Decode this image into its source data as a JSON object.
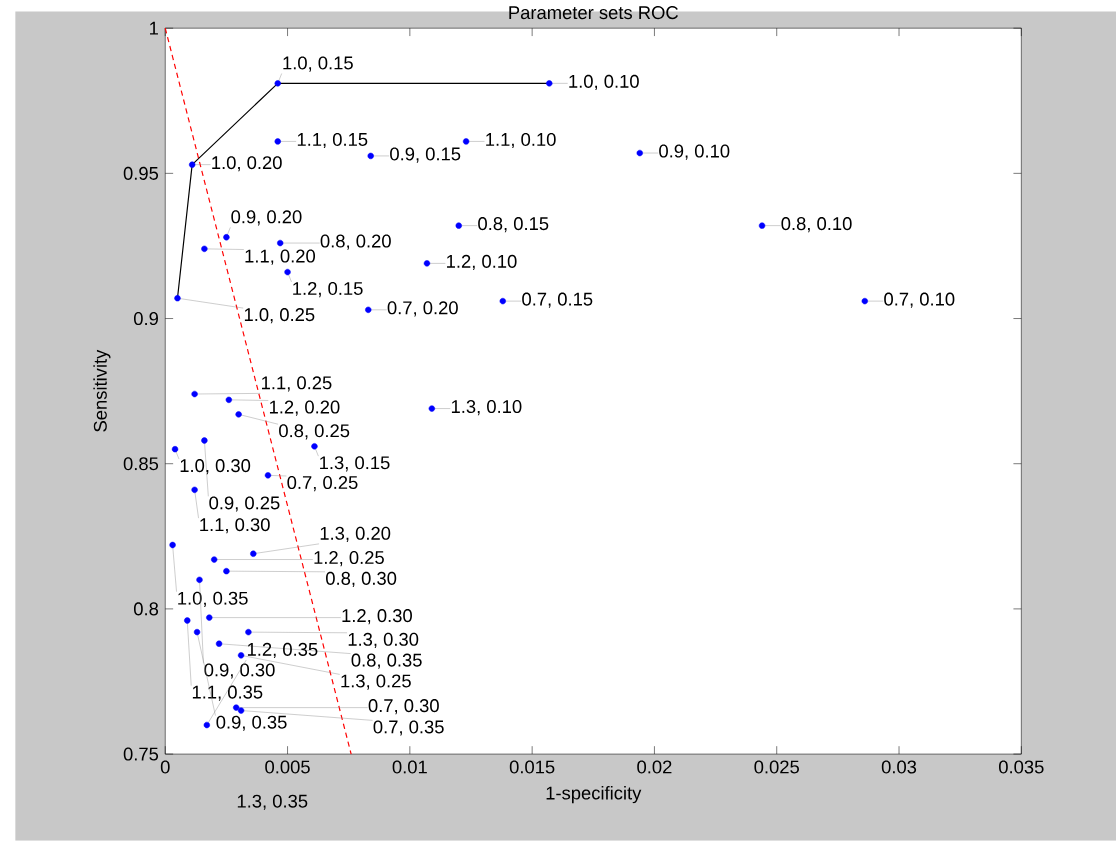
{
  "chart_data": {
    "type": "scatter",
    "title": "Parameter sets ROC",
    "xlabel": "1-specificity",
    "ylabel": "Sensitivity",
    "xlim": [
      0,
      0.035
    ],
    "ylim": [
      0.75,
      1
    ],
    "xticks": [
      0,
      0.005,
      0.01,
      0.015,
      0.02,
      0.025,
      0.03,
      0.035
    ],
    "yticks": [
      0.75,
      0.8,
      0.85,
      0.9,
      0.95,
      1
    ],
    "annotations": [
      "1.3, 0.35"
    ],
    "series": [
      {
        "color": "#0000ff",
        "marker": "circle",
        "x": [
          0.0157,
          0.0046,
          0.0046,
          0.0123,
          0.0084,
          0.0194,
          0.0011,
          0.012,
          0.0244,
          0.0025,
          0.0016,
          0.0047,
          0.005,
          0.0107,
          0.0005,
          0.0083,
          0.0138,
          0.0286,
          0.0012,
          0.0026,
          0.003,
          0.0016,
          0.0004,
          0.0061,
          0.0109,
          0.0042,
          0.0012,
          0.0003,
          0.002,
          0.0036,
          0.0025,
          0.0014,
          0.0009,
          0.0018,
          0.0013,
          0.0034,
          0.0022,
          0.0031,
          0.0029,
          0.0031,
          0.0017
        ],
        "values": [
          0.981,
          0.981,
          0.961,
          0.961,
          0.956,
          0.957,
          0.953,
          0.932,
          0.932,
          0.928,
          0.924,
          0.926,
          0.916,
          0.919,
          0.907,
          0.903,
          0.906,
          0.906,
          0.874,
          0.872,
          0.867,
          0.858,
          0.855,
          0.856,
          0.869,
          0.846,
          0.841,
          0.822,
          0.817,
          0.819,
          0.813,
          0.81,
          0.796,
          0.797,
          0.792,
          0.792,
          0.788,
          0.784,
          0.766,
          0.765,
          0.76
        ],
        "value_labels": [
          "1.0, 0.10",
          "1.0, 0.15",
          "1.1, 0.15",
          "1.1, 0.10",
          "0.9, 0.15",
          "0.9, 0.10",
          "1.0, 0.20",
          "0.8, 0.15",
          "0.8, 0.10",
          "0.9, 0.20",
          "1.1, 0.20",
          "0.8, 0.20",
          "1.2, 0.15",
          "1.2, 0.10",
          "1.0, 0.25",
          "0.7, 0.20",
          "0.7, 0.15",
          "0.7, 0.10",
          "1.1, 0.25",
          "1.2, 0.20",
          "0.8, 0.25",
          "0.9, 0.25",
          "1.0, 0.30",
          "1.3, 0.15",
          "1.3, 0.10",
          "0.7, 0.25",
          "1.1, 0.30",
          "1.0, 0.35",
          "1.2, 0.25",
          "1.3, 0.20",
          "0.8, 0.30",
          "0.9, 0.30",
          "1.1, 0.35",
          "1.2, 0.30",
          "0.9, 0.35",
          "1.3, 0.30",
          "0.8, 0.35",
          "1.3, 0.25",
          "0.7, 0.30",
          "0.7, 0.35",
          "1.2, 0.35"
        ]
      },
      {
        "type": "line",
        "color": "#000000",
        "marker": "none",
        "line_style": "solid",
        "x": [
          0.0005,
          0.0011,
          0.0046,
          0.0157
        ],
        "values": [
          0.907,
          0.953,
          0.981,
          0.981
        ]
      },
      {
        "type": "line",
        "color": "#ff0000",
        "marker": "none",
        "line_style": "dashed",
        "x": [
          0,
          0.0076
        ],
        "values": [
          1,
          0.75
        ]
      }
    ]
  }
}
